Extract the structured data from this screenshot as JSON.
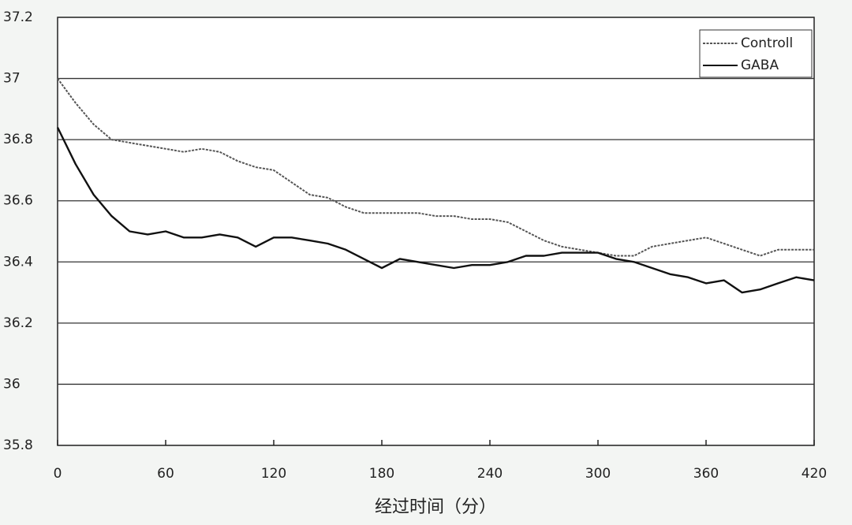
{
  "chart_data": {
    "type": "line",
    "xlabel": "经过时间（分）",
    "x": [
      0,
      10,
      20,
      30,
      40,
      50,
      60,
      70,
      80,
      90,
      100,
      110,
      120,
      130,
      140,
      150,
      160,
      170,
      180,
      190,
      200,
      210,
      220,
      230,
      240,
      250,
      260,
      270,
      280,
      290,
      300,
      310,
      320,
      330,
      340,
      350,
      360,
      370,
      380,
      390,
      400,
      410,
      420
    ],
    "series": [
      {
        "name": "Controll",
        "color": "#555555",
        "dash": true,
        "values": [
          37.0,
          36.92,
          36.85,
          36.8,
          36.79,
          36.78,
          36.77,
          36.76,
          36.77,
          36.76,
          36.73,
          36.71,
          36.7,
          36.66,
          36.62,
          36.61,
          36.58,
          36.56,
          36.56,
          36.56,
          36.56,
          36.55,
          36.55,
          36.54,
          36.54,
          36.53,
          36.5,
          36.47,
          36.45,
          36.44,
          36.43,
          36.42,
          36.42,
          36.45,
          36.46,
          36.47,
          36.48,
          36.46,
          36.44,
          36.42,
          36.44,
          36.44,
          36.44
        ]
      },
      {
        "name": "GABA",
        "color": "#111111",
        "dash": false,
        "values": [
          36.84,
          36.72,
          36.62,
          36.55,
          36.5,
          36.49,
          36.5,
          36.48,
          36.48,
          36.49,
          36.48,
          36.45,
          36.48,
          36.48,
          36.47,
          36.46,
          36.44,
          36.41,
          36.38,
          36.41,
          36.4,
          36.39,
          36.38,
          36.39,
          36.39,
          36.4,
          36.42,
          36.42,
          36.43,
          36.43,
          36.43,
          36.41,
          36.4,
          36.38,
          36.36,
          36.35,
          36.33,
          36.34,
          36.3,
          36.31,
          36.33,
          36.35,
          36.34
        ]
      }
    ],
    "xlim": [
      0,
      420
    ],
    "xticks": [
      0,
      60,
      120,
      180,
      240,
      300,
      360,
      420
    ],
    "ylim": [
      35.8,
      37.2
    ],
    "yticks": [
      35.8,
      36,
      36.2,
      36.4,
      36.6,
      36.8,
      37,
      37.2
    ],
    "grid": true,
    "legend": "top-right"
  }
}
